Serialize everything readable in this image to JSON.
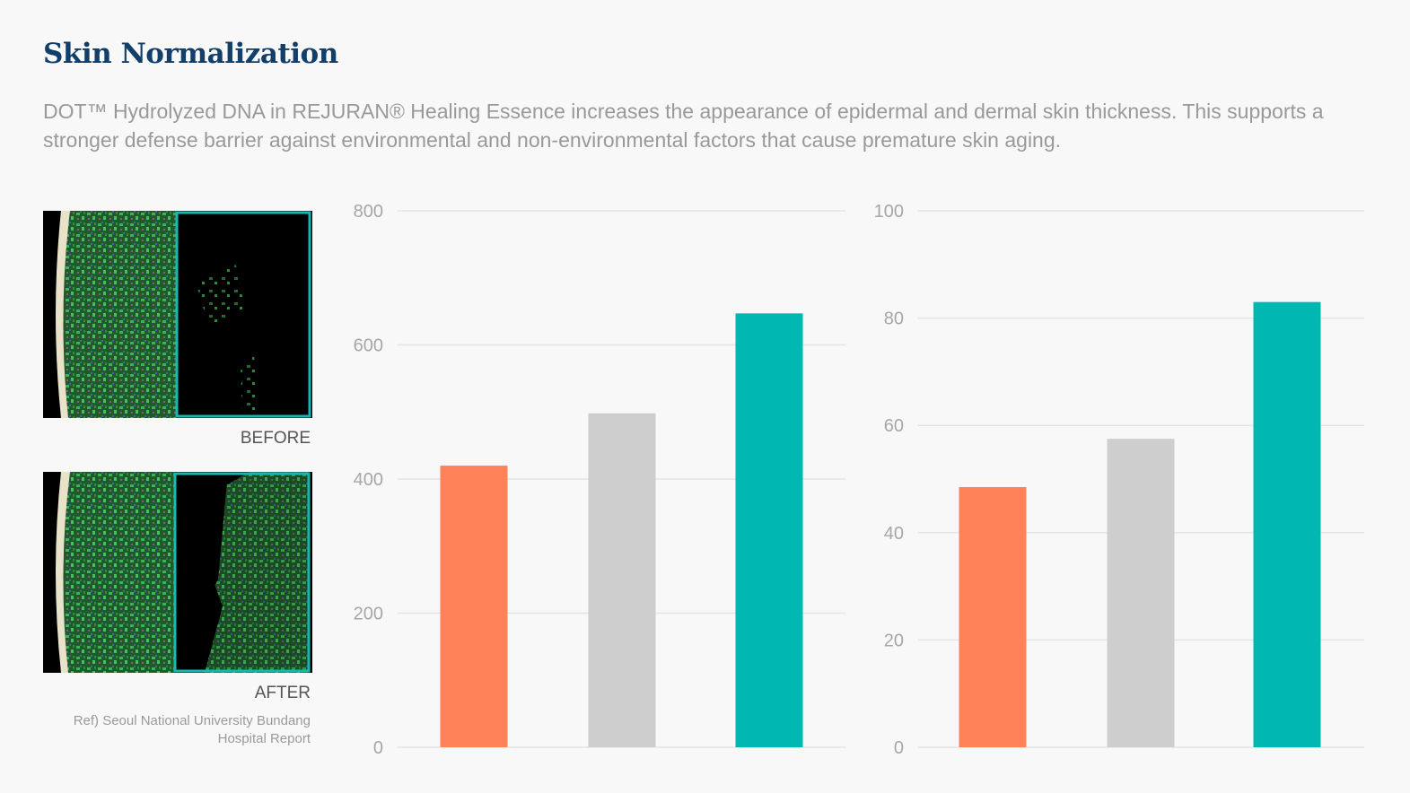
{
  "header": {
    "title": "Skin Normalization",
    "description": "DOT™ Hydrolyzed DNA in REJURAN® Healing Essence increases the appearance of epidermal and dermal skin thickness. This supports a stronger defense barrier against environmental and non-environmental factors that cause premature skin aging."
  },
  "images": {
    "before_label": "BEFORE",
    "after_label": "AFTER",
    "reference": "Ref) Seoul National University Bundang Hospital Report"
  },
  "colors": {
    "orange": "#ff8259",
    "gray": "#cdcecd",
    "teal": "#00b7b1",
    "title": "#123f6a",
    "scan_frame": "#17b8b2"
  },
  "chart_data": [
    {
      "type": "bar",
      "categories": [
        "",
        "",
        ""
      ],
      "values": [
        420,
        498,
        647
      ],
      "colors": [
        "#ff8259",
        "#cdcecd",
        "#00b7b1"
      ],
      "ylim": [
        0,
        800
      ],
      "yticks": [
        0,
        200,
        400,
        600,
        800
      ],
      "grid": true,
      "title": "",
      "xlabel": "",
      "ylabel": ""
    },
    {
      "type": "bar",
      "categories": [
        "",
        "",
        ""
      ],
      "values": [
        48.5,
        57.5,
        83
      ],
      "colors": [
        "#ff8259",
        "#cdcecd",
        "#00b7b1"
      ],
      "ylim": [
        0,
        100
      ],
      "yticks": [
        0,
        20,
        40,
        60,
        80,
        100
      ],
      "grid": true,
      "title": "",
      "xlabel": "",
      "ylabel": ""
    }
  ]
}
